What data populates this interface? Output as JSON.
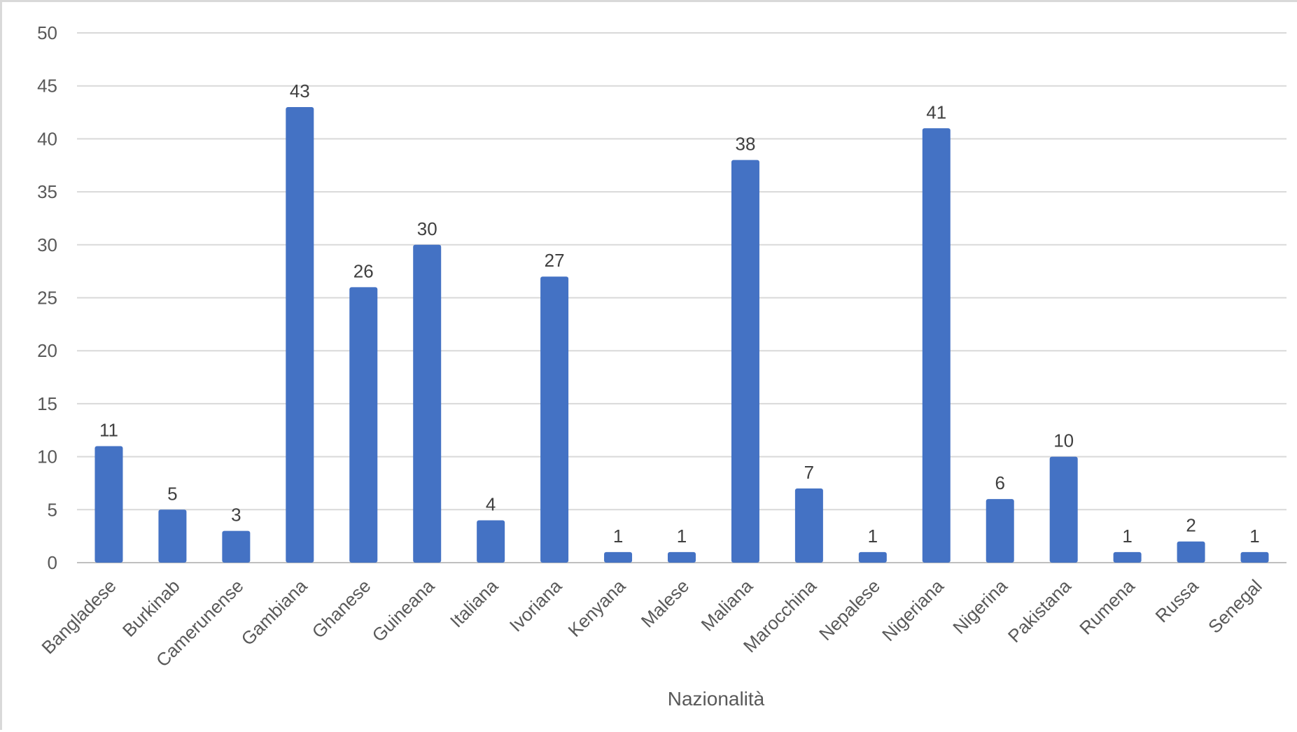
{
  "chart_data": {
    "type": "bar",
    "title": "",
    "xlabel": "Nazionalità",
    "ylabel": "",
    "ylim": [
      0,
      50
    ],
    "yticks": [
      0,
      5,
      10,
      15,
      20,
      25,
      30,
      35,
      40,
      45,
      50
    ],
    "grid": true,
    "legend": "none",
    "bar_color": "#4472C4",
    "categories": [
      "Bangladese",
      "Burkinab",
      "Camerunense",
      "Gambiana",
      "Ghanese",
      "Guineana",
      "Italiana",
      "Ivoriana",
      "Kenyana",
      "Malese",
      "Maliana",
      "Marocchina",
      "Nepalese",
      "Nigeriana",
      "Nigerina",
      "Pakistana",
      "Rumena",
      "Russa",
      "Senegal"
    ],
    "values": [
      11,
      5,
      3,
      43,
      26,
      30,
      4,
      27,
      1,
      1,
      38,
      7,
      1,
      41,
      6,
      10,
      1,
      2,
      1
    ]
  }
}
